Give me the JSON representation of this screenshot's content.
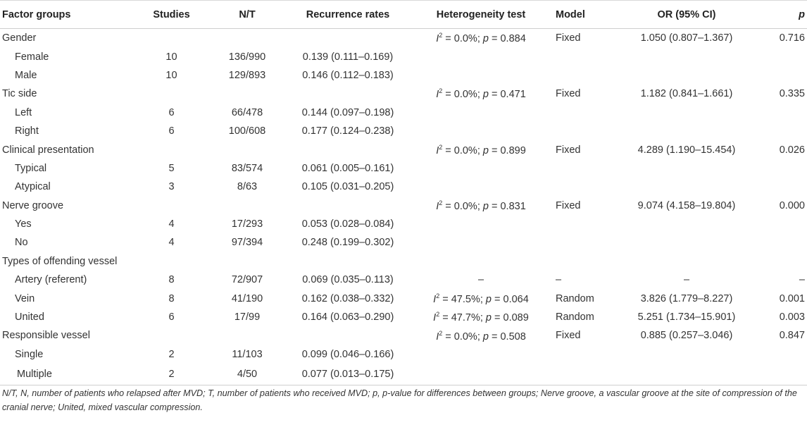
{
  "header": {
    "factor": "Factor groups",
    "studies": "Studies",
    "nt": "N/T",
    "rates": "Recurrence rates",
    "hetero": "Heterogeneity test",
    "model": "Model",
    "or": "OR (95% CI)",
    "p": "p"
  },
  "rows": [
    {
      "factor": "Gender",
      "level": 0,
      "studies": "",
      "nt": "",
      "rate": "",
      "i2": "= 0.0%; ",
      "pval": "= 0.884",
      "model": "Fixed",
      "or": "1.050 (0.807–1.367)",
      "p": "0.716"
    },
    {
      "factor": "Female",
      "level": 1,
      "studies": "10",
      "nt": "136/990",
      "rate": "0.139 (0.111–0.169)",
      "i2": "",
      "pval": "",
      "model": "",
      "or": "",
      "p": ""
    },
    {
      "factor": "Male",
      "level": 1,
      "studies": "10",
      "nt": "129/893",
      "rate": "0.146 (0.112–0.183)",
      "i2": "",
      "pval": "",
      "model": "",
      "or": "",
      "p": ""
    },
    {
      "factor": "Tic side",
      "level": 0,
      "studies": "",
      "nt": "",
      "rate": "",
      "i2": "= 0.0%; ",
      "pval": "= 0.471",
      "model": "Fixed",
      "or": "1.182 (0.841–1.661)",
      "p": "0.335"
    },
    {
      "factor": "Left",
      "level": 1,
      "studies": "6",
      "nt": "66/478",
      "rate": "0.144 (0.097–0.198)",
      "i2": "",
      "pval": "",
      "model": "",
      "or": "",
      "p": ""
    },
    {
      "factor": "Right",
      "level": 1,
      "studies": "6",
      "nt": "100/608",
      "rate": "0.177 (0.124–0.238)",
      "i2": "",
      "pval": "",
      "model": "",
      "or": "",
      "p": ""
    },
    {
      "factor": "Clinical presentation",
      "level": 0,
      "studies": "",
      "nt": "",
      "rate": "",
      "i2": "= 0.0%; ",
      "pval": "= 0.899",
      "model": "Fixed",
      "or": "4.289 (1.190–15.454)",
      "p": "0.026"
    },
    {
      "factor": "Typical",
      "level": 1,
      "studies": "5",
      "nt": "83/574",
      "rate": "0.061 (0.005–0.161)",
      "i2": "",
      "pval": "",
      "model": "",
      "or": "",
      "p": ""
    },
    {
      "factor": "Atypical",
      "level": 1,
      "studies": "3",
      "nt": "8/63",
      "rate": "0.105 (0.031–0.205)",
      "i2": "",
      "pval": "",
      "model": "",
      "or": "",
      "p": ""
    },
    {
      "factor": "Nerve groove",
      "level": 0,
      "studies": "",
      "nt": "",
      "rate": "",
      "i2": "= 0.0%; ",
      "pval": "= 0.831",
      "model": "Fixed",
      "or": "9.074 (4.158–19.804)",
      "p": "0.000"
    },
    {
      "factor": "Yes",
      "level": 1,
      "studies": "4",
      "nt": "17/293",
      "rate": "0.053 (0.028–0.084)",
      "i2": "",
      "pval": "",
      "model": "",
      "or": "",
      "p": ""
    },
    {
      "factor": "No",
      "level": 1,
      "studies": "4",
      "nt": "97/394",
      "rate": "0.248 (0.199–0.302)",
      "i2": "",
      "pval": "",
      "model": "",
      "or": "",
      "p": ""
    },
    {
      "factor": "Types of offending vessel",
      "level": 0,
      "studies": "",
      "nt": "",
      "rate": "",
      "i2": "",
      "pval": "",
      "model": "",
      "or": "",
      "p": ""
    },
    {
      "factor": "Artery (referent)",
      "level": 1,
      "studies": "8",
      "nt": "72/907",
      "rate": "0.069 (0.035–0.113)",
      "dash": "–",
      "i2": "",
      "pval": "",
      "model": "–",
      "or": "–",
      "p": "–"
    },
    {
      "factor": "Vein",
      "level": 1,
      "studies": "8",
      "nt": "41/190",
      "rate": "0.162 (0.038–0.332)",
      "i2": "= 47.5%; ",
      "pval": "= 0.064",
      "model": "Random",
      "or": "3.826 (1.779–8.227)",
      "p": "0.001"
    },
    {
      "factor": "United",
      "level": 1,
      "studies": "6",
      "nt": "17/99",
      "rate": "0.164 (0.063–0.290)",
      "i2": "= 47.7%; ",
      "pval": "= 0.089",
      "model": "Random",
      "or": "5.251 (1.734–15.901)",
      "p": "0.003"
    },
    {
      "factor": "Responsible vessel",
      "level": 0,
      "studies": "",
      "nt": "",
      "rate": "",
      "i2": "= 0.0%; ",
      "pval": "= 0.508",
      "model": "Fixed",
      "or": "0.885 (0.257–3.046)",
      "p": "0.847"
    },
    {
      "factor": "Single",
      "level": 1,
      "studies": "2",
      "nt": "11/103",
      "rate": "0.099 (0.046–0.166)",
      "i2": "",
      "pval": "",
      "model": "",
      "or": "",
      "p": ""
    },
    {
      "factor": "Multiple",
      "level": 2,
      "studies": "2",
      "nt": "4/50",
      "rate": "0.077 (0.013–0.175)",
      "i2": "",
      "pval": "",
      "model": "",
      "or": "",
      "p": ""
    }
  ],
  "footnote": "N/T, N, number of patients who relapsed after MVD; T, number of patients who received MVD; p, p-value for differences between groups; Nerve groove, a vascular groove at the site of compression of the cranial nerve; United, mixed vascular compression."
}
